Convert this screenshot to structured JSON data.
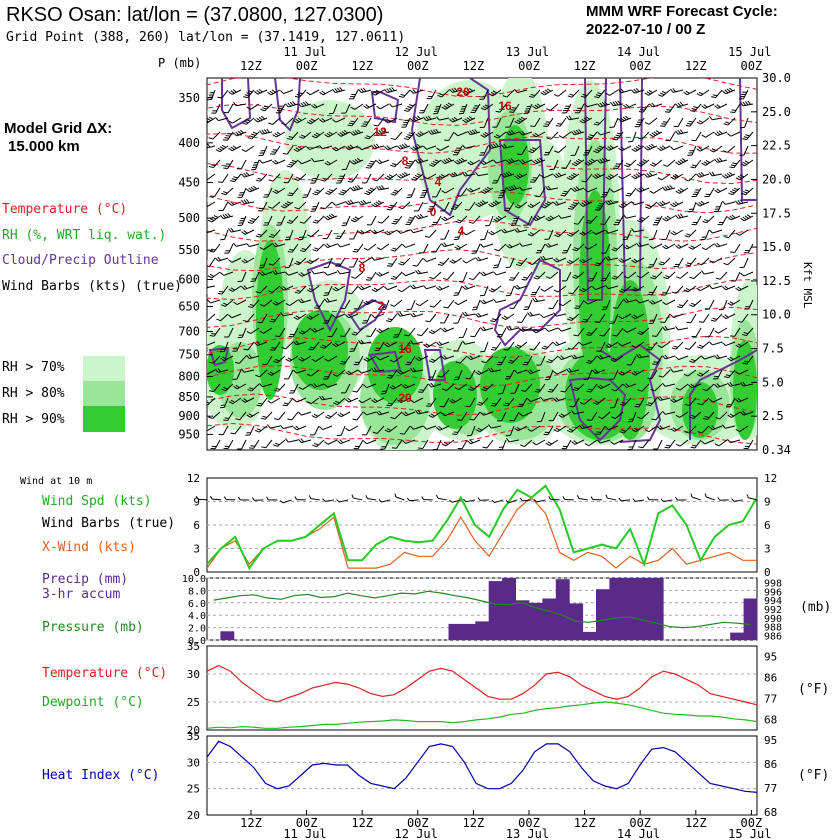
{
  "header": {
    "station": "RKSO Osan:  lat/lon = (37.0800, 127.0300)",
    "grid": "Grid Point (388, 260) lat/lon = (37.1419, 127.0611)",
    "cycle_line1": "MMM WRF Forecast Cycle:",
    "cycle_line2": "2022-07-10 / 00  Z"
  },
  "legend": {
    "model_grid_line1": "Model Grid ΔX:",
    "model_grid_line2": "15.000 km",
    "temperature": "Temperature (°C)",
    "rh": "RH (%, WRT liq. wat.)",
    "cloud": "Cloud/Precip Outline",
    "wind": "Wind Barbs (kts) (true)",
    "rh70": "RH > 70%",
    "rh80": "RH > 80%",
    "rh90": "RH > 90%",
    "colors": {
      "rh70": "#ccf5cc",
      "rh80": "#99e699",
      "rh90": "#33cc33",
      "temp": "#dd2222",
      "cloud": "#663399",
      "windspd": "#22cc22",
      "xwind": "#e06020",
      "precip": "#5a2a8a",
      "pressure": "#228822",
      "heat": "#0000aa",
      "dew": "#22bb22"
    }
  },
  "panel_labels": {
    "wind10m": "Wind at 10 m",
    "wind_spd": "Wind Spd (kts)",
    "wind_barbs": "Wind Barbs (true)",
    "xwind": "X-Wind (kts)",
    "precip1": "Precip (mm)",
    "precip2": "3-hr accum",
    "pressure": "Pressure (mb)",
    "temp": "Temperature (°C)",
    "dew": "Dewpoint (°C)",
    "heat": "Heat Index (°C)",
    "mb_unit": "(mb)",
    "degf1": "(°F)",
    "degf2": "(°F)",
    "p_label": "P (mb)",
    "kft_label": "Kft MSL"
  },
  "chart_data": [
    {
      "type": "heatmap",
      "name": "cross-section",
      "time_ticks": [
        "12Z",
        "00Z",
        "12Z",
        "00Z",
        "12Z",
        "00Z",
        "12Z",
        "00Z",
        "12Z",
        "00Z"
      ],
      "date_labels": [
        "11 Jul",
        "12 Jul",
        "13 Jul",
        "14 Jul",
        "15 Jul"
      ],
      "pressure_levels": [
        350,
        400,
        450,
        500,
        550,
        600,
        650,
        700,
        750,
        800,
        850,
        900,
        950
      ],
      "height_kft": [
        "30.0",
        "25.0",
        "22.5",
        "20.0",
        "17.5",
        "15.0",
        "12.5",
        "10.0",
        "7.5",
        "5.0",
        "2.5",
        "0.34"
      ],
      "temp_contour_labels": [
        "20",
        "16",
        "12",
        "8",
        "4",
        "0",
        "4",
        "8",
        "2",
        "16",
        "20"
      ]
    },
    {
      "type": "line",
      "name": "wind",
      "yticks": [
        0,
        3,
        6,
        9,
        12
      ],
      "ylim": [
        0,
        12
      ],
      "wind_speed": [
        1,
        3,
        4.5,
        0.5,
        3,
        4,
        4,
        4.5,
        6,
        7.5,
        1.5,
        1.5,
        3.5,
        4.5,
        4,
        3.8,
        4,
        6.5,
        9.5,
        6,
        4.5,
        8,
        10.5,
        9.5,
        11,
        8,
        2.5,
        3,
        3.5,
        3,
        5.5,
        1,
        7.5,
        8.5,
        6,
        1.5,
        4.5,
        6,
        6.5,
        9.5
      ],
      "x_wind": [
        0.5,
        3,
        4,
        1,
        3,
        4,
        4,
        4.5,
        5.5,
        7,
        0.5,
        0.5,
        0.5,
        1,
        2.5,
        2,
        2,
        4,
        7,
        4,
        2,
        5,
        8,
        9.5,
        7.5,
        2.5,
        1.5,
        2.5,
        2,
        0.5,
        2,
        1,
        1.5,
        3,
        1,
        1.5,
        2,
        2.5,
        1.5,
        1.5
      ]
    },
    {
      "type": "bar",
      "name": "precip",
      "yticks": [
        "0.0",
        "2.0",
        "4.0",
        "6.0",
        "8.0",
        "10.0"
      ],
      "ylim": [
        0,
        10
      ],
      "values": [
        0,
        1.4,
        0,
        0,
        0,
        0,
        0,
        0,
        0,
        0,
        0,
        0,
        0,
        0,
        0,
        0,
        0,
        0,
        2.6,
        2.6,
        3,
        9.5,
        10,
        6.4,
        6,
        6.7,
        9.8,
        5.9,
        1.3,
        8.2,
        10,
        10,
        10,
        10,
        0,
        0,
        0,
        0,
        0,
        1.2,
        6.7
      ],
      "pressure_ticks": [
        "998",
        "996",
        "994",
        "992",
        "990",
        "988",
        "986"
      ],
      "pressure_range": [
        985,
        999
      ],
      "pressure": [
        994,
        994.5,
        995,
        995.2,
        994.5,
        994.2,
        995,
        995.3,
        994.6,
        994.8,
        995.6,
        995,
        994.5,
        995,
        995.6,
        995.4,
        996,
        995.6,
        995,
        994.5,
        993.8,
        993.1,
        993,
        993.4,
        992.3,
        991.5,
        990.6,
        989.2,
        989,
        989.5,
        990,
        990.2,
        989.5,
        988.8,
        988,
        987.8,
        988,
        988.5,
        989,
        988.8,
        988.5
      ]
    },
    {
      "type": "line",
      "name": "temperature",
      "yticks_c": [
        "35",
        "30",
        "25",
        "20"
      ],
      "yticks_f": [
        "95",
        "86",
        "77",
        "68"
      ],
      "ylim": [
        20,
        35
      ],
      "temperature": [
        30.5,
        31.5,
        30.5,
        28.5,
        27,
        25.5,
        25,
        25.8,
        26.5,
        27.5,
        28,
        28.5,
        28.2,
        27.5,
        26.5,
        26,
        26.3,
        27.5,
        29,
        30.5,
        31,
        30.5,
        29,
        27.5,
        26,
        25.5,
        25.5,
        26.5,
        28,
        30,
        30.3,
        29.5,
        28,
        27,
        26,
        25.5,
        26,
        27.5,
        29.5,
        30.5,
        30,
        29,
        28,
        26.5,
        26,
        25.5,
        25,
        24.5
      ],
      "dewpoint": [
        20.3,
        20.5,
        20.4,
        20.6,
        20.5,
        20.3,
        20.3,
        20.5,
        20.6,
        20.8,
        21,
        21,
        21.2,
        21.4,
        21.5,
        21.6,
        21.8,
        21.7,
        21.5,
        21.5,
        21.5,
        21.3,
        21.5,
        21.8,
        22,
        22.3,
        22.8,
        23,
        23.5,
        23.8,
        24,
        24.3,
        24.5,
        24.8,
        25,
        24.8,
        24.5,
        24,
        23.5,
        23,
        22.8,
        22.7,
        22.5,
        22.5,
        22.3,
        22,
        21.8,
        21.5
      ]
    },
    {
      "type": "line",
      "name": "heat-index",
      "yticks_c": [
        "35",
        "30",
        "25",
        "20"
      ],
      "yticks_f": [
        "95",
        "86",
        "77",
        "68"
      ],
      "ylim": [
        20,
        35
      ],
      "heat_index": [
        31,
        34,
        33,
        31,
        29,
        26,
        25,
        25.5,
        27.5,
        29.5,
        29.8,
        29.5,
        29.5,
        27.5,
        26,
        25.5,
        25,
        27,
        30,
        33,
        33.5,
        33,
        30,
        26,
        25,
        25,
        26,
        28.5,
        32,
        33.5,
        33.5,
        32,
        29,
        26.5,
        25.5,
        25,
        26,
        29.5,
        32.5,
        32.8,
        32,
        30,
        28,
        26,
        25.5,
        25,
        24.5,
        24.3
      ]
    }
  ]
}
